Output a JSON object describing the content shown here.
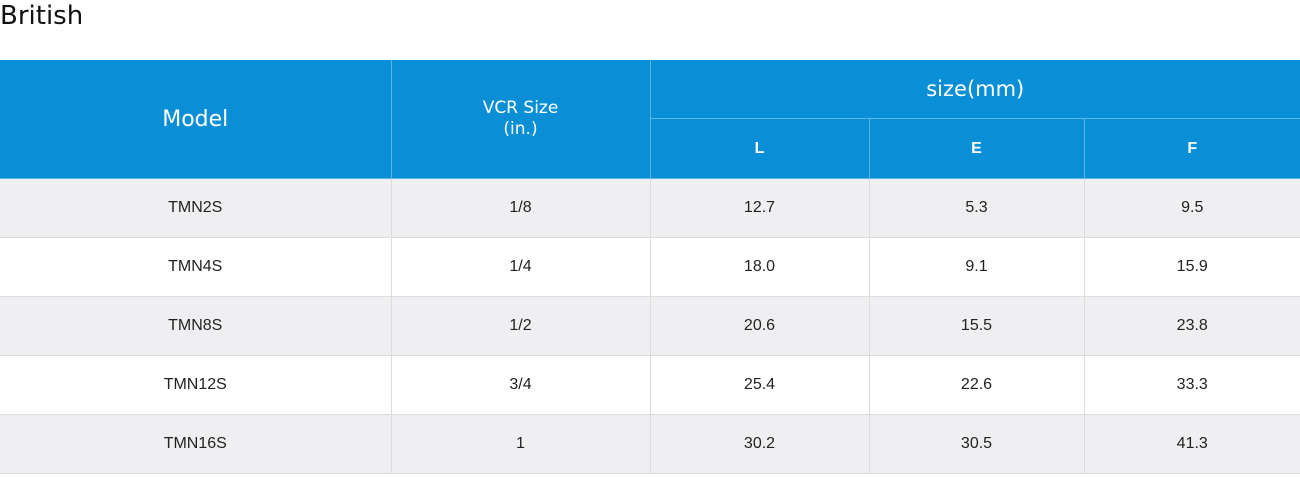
{
  "section_title": "British",
  "table": {
    "headers": {
      "model": "Model",
      "vcr_size_line1": "VCR Size",
      "vcr_size_line2": "(in.)",
      "size_group": "size(mm)",
      "l": "L",
      "e": "E",
      "f": "F"
    },
    "rows": [
      {
        "model": "TMN2S",
        "vcr": "1/8",
        "l": "12.7",
        "e": "5.3",
        "f": "9.5"
      },
      {
        "model": "TMN4S",
        "vcr": "1/4",
        "l": "18.0",
        "e": "9.1",
        "f": "15.9"
      },
      {
        "model": "TMN8S",
        "vcr": "1/2",
        "l": "20.6",
        "e": "15.5",
        "f": "23.8"
      },
      {
        "model": "TMN12S",
        "vcr": "3/4",
        "l": "25.4",
        "e": "22.6",
        "f": "33.3"
      },
      {
        "model": "TMN16S",
        "vcr": "1",
        "l": "30.2",
        "e": "30.5",
        "f": "41.3"
      }
    ]
  },
  "colors": {
    "header_background": "#0a8fd6",
    "row_alt_background": "#efeff1"
  }
}
